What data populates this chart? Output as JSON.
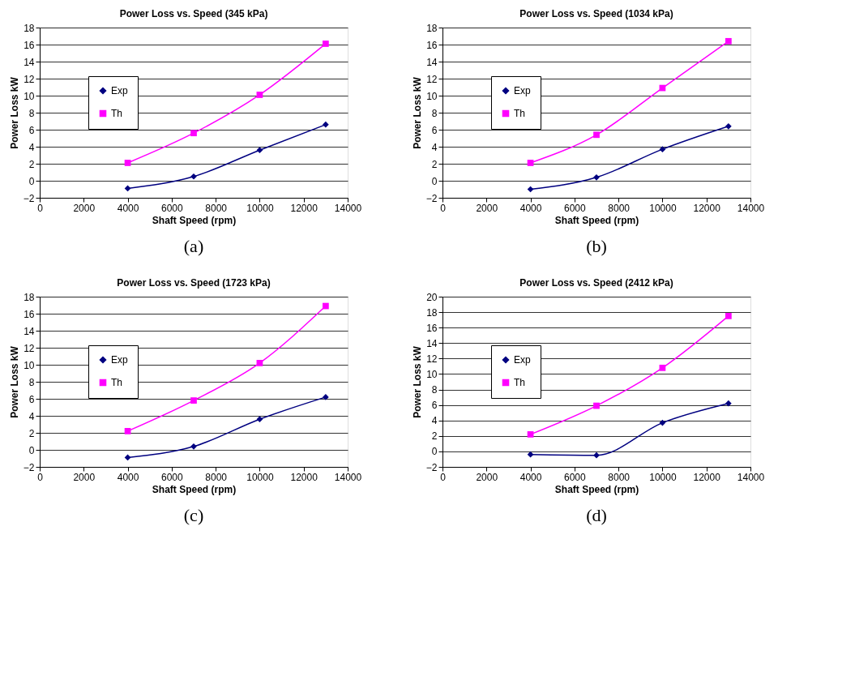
{
  "chart_data": [
    {
      "type": "line",
      "title": "Power Loss vs. Speed (345 kPa)",
      "xlabel": "Shaft Speed (rpm)",
      "ylabel": "Power Loss kW",
      "annotations": [
        "(a)"
      ],
      "x": [
        4000,
        7000,
        10000,
        13000
      ],
      "xlim": [
        0,
        14000
      ],
      "xticks": [
        0,
        2000,
        4000,
        6000,
        8000,
        10000,
        12000,
        14000
      ],
      "ylim": [
        -2,
        18
      ],
      "yticks": [
        -2,
        0,
        2,
        4,
        6,
        8,
        10,
        12,
        14,
        16,
        18
      ],
      "grid": "y",
      "legend": "top left",
      "line_style": "solid",
      "series": [
        {
          "name": "Exp",
          "color": "#000080",
          "marker": "diamond",
          "values": [
            -0.9,
            0.5,
            3.6,
            6.6
          ]
        },
        {
          "name": "Th",
          "color": "#ff00ff",
          "marker": "square",
          "values": [
            2.1,
            5.6,
            10.1,
            16.1
          ]
        }
      ]
    },
    {
      "type": "line",
      "title": "Power Loss vs. Speed (1034 kPa)",
      "xlabel": "Shaft Speed (rpm)",
      "ylabel": "Power Loss kW",
      "annotations": [
        "(b)"
      ],
      "x": [
        4000,
        7000,
        10000,
        13000
      ],
      "xlim": [
        0,
        14000
      ],
      "xticks": [
        0,
        2000,
        4000,
        6000,
        8000,
        10000,
        12000,
        14000
      ],
      "ylim": [
        -2,
        18
      ],
      "yticks": [
        -2,
        0,
        2,
        4,
        6,
        8,
        10,
        12,
        14,
        16,
        18
      ],
      "grid": "y",
      "legend": "top left",
      "line_style": "solid",
      "series": [
        {
          "name": "Exp",
          "color": "#000080",
          "marker": "diamond",
          "values": [
            -1.0,
            0.4,
            3.7,
            6.4
          ]
        },
        {
          "name": "Th",
          "color": "#ff00ff",
          "marker": "square",
          "values": [
            2.1,
            5.4,
            10.9,
            16.4
          ]
        }
      ]
    },
    {
      "type": "line",
      "title": "Power Loss vs. Speed (1723 kPa)",
      "xlabel": "Shaft Speed (rpm)",
      "ylabel": "Power Loss kW",
      "annotations": [
        "(c)"
      ],
      "x": [
        4000,
        7000,
        10000,
        13000
      ],
      "xlim": [
        0,
        14000
      ],
      "xticks": [
        0,
        2000,
        4000,
        6000,
        8000,
        10000,
        12000,
        14000
      ],
      "ylim": [
        -2,
        18
      ],
      "yticks": [
        -2,
        0,
        2,
        4,
        6,
        8,
        10,
        12,
        14,
        16,
        18
      ],
      "grid": "y",
      "legend": "top left",
      "line_style": "solid",
      "series": [
        {
          "name": "Exp",
          "color": "#000080",
          "marker": "diamond",
          "values": [
            -0.9,
            0.4,
            3.6,
            6.2
          ]
        },
        {
          "name": "Th",
          "color": "#ff00ff",
          "marker": "square",
          "values": [
            2.2,
            5.8,
            10.2,
            16.9
          ]
        }
      ]
    },
    {
      "type": "line",
      "title": "Power Loss vs. Speed (2412 kPa)",
      "xlabel": "Shaft Speed (rpm)",
      "ylabel": "Power Loss kW",
      "annotations": [
        "(d)"
      ],
      "x": [
        4000,
        7000,
        10000,
        13000
      ],
      "xlim": [
        0,
        14000
      ],
      "xticks": [
        0,
        2000,
        4000,
        6000,
        8000,
        10000,
        12000,
        14000
      ],
      "ylim": [
        -2,
        20
      ],
      "yticks": [
        -2,
        0,
        2,
        4,
        6,
        8,
        10,
        12,
        14,
        16,
        18,
        20
      ],
      "grid": "y",
      "legend": "top left",
      "line_style": "solid",
      "series": [
        {
          "name": "Exp",
          "color": "#000080",
          "marker": "diamond",
          "values": [
            -0.4,
            -0.5,
            3.7,
            6.2
          ]
        },
        {
          "name": "Th",
          "color": "#ff00ff",
          "marker": "square",
          "values": [
            2.2,
            5.9,
            10.8,
            17.5
          ]
        }
      ]
    }
  ]
}
